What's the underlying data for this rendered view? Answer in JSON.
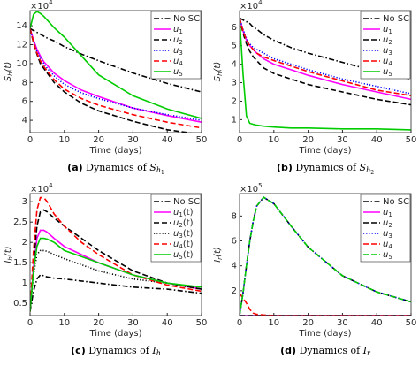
{
  "chart_data": [
    {
      "type": "line",
      "caption_label": "(a)",
      "caption_text": "Dynamics of",
      "caption_symbol": "S",
      "caption_sub": "h",
      "caption_subsub": "1",
      "ylabel_symbol": "S",
      "ylabel_sub": "h",
      "ylabel_suffix": "(t)",
      "xlabel": "Time (days)",
      "exponent_base": "×10",
      "exponent": "4",
      "x": [
        0,
        1,
        2,
        3,
        4,
        5,
        7,
        10,
        15,
        20,
        30,
        40,
        50
      ],
      "xlim": [
        0,
        50
      ],
      "xticks": [
        0,
        10,
        20,
        30,
        40,
        50
      ],
      "ylim": [
        2.7,
        15.6
      ],
      "yticks": [
        4,
        6,
        8,
        10,
        12,
        14
      ],
      "legend": "upper right",
      "series": [
        {
          "name": "No SC",
          "color": "#000000",
          "linestyle": "dashdot",
          "values": [
            13.7,
            13.5,
            13.3,
            13.1,
            12.9,
            12.7,
            12.4,
            11.8,
            11.0,
            10.3,
            9.0,
            7.9,
            7.0
          ]
        },
        {
          "name": "u1",
          "color": "#ff00ff",
          "linestyle": "solid",
          "values": [
            13.7,
            12.5,
            11.5,
            10.8,
            10.2,
            9.8,
            9.0,
            8.2,
            7.2,
            6.5,
            5.3,
            4.5,
            3.8
          ]
        },
        {
          "name": "u2",
          "color": "#000000",
          "linestyle": "dashed",
          "values": [
            13.7,
            12.2,
            11.0,
            10.0,
            9.5,
            9.0,
            8.0,
            7.0,
            5.8,
            5.0,
            3.9,
            3.0,
            2.5
          ]
        },
        {
          "name": "u3",
          "color": "#0000ff",
          "linestyle": "dotted",
          "values": [
            13.7,
            12.4,
            11.3,
            10.6,
            10.0,
            9.5,
            8.7,
            7.8,
            6.9,
            6.3,
            5.3,
            4.6,
            4.0
          ]
        },
        {
          "name": "u4",
          "color": "#ff0000",
          "linestyle": "dashed",
          "values": [
            13.7,
            12.3,
            11.1,
            10.3,
            9.7,
            9.2,
            8.3,
            7.3,
            6.3,
            5.6,
            4.6,
            3.8,
            3.2
          ]
        },
        {
          "name": "u5",
          "color": "#00cc00",
          "linestyle": "solid",
          "values": [
            13.7,
            15.2,
            15.5,
            15.3,
            15.0,
            14.6,
            13.8,
            12.8,
            10.8,
            8.8,
            6.6,
            5.2,
            4.2
          ]
        }
      ]
    },
    {
      "type": "line",
      "caption_label": "(b)",
      "caption_text": "Dynamics of",
      "caption_symbol": "S",
      "caption_sub": "h",
      "caption_subsub": "2",
      "ylabel_symbol": "S",
      "ylabel_sub": "h",
      "ylabel_suffix": "(t)",
      "xlabel": "Time (days)",
      "exponent_base": "×10",
      "exponent": "4",
      "x": [
        0,
        1,
        2,
        3,
        4,
        5,
        7,
        10,
        15,
        20,
        30,
        40,
        50
      ],
      "xlim": [
        0,
        50
      ],
      "xticks": [
        0,
        10,
        20,
        30,
        40,
        50
      ],
      "ylim": [
        0.3,
        6.9
      ],
      "yticks": [
        1,
        2,
        3,
        4,
        5,
        6
      ],
      "legend": "upper right",
      "series": [
        {
          "name": "No SC",
          "color": "#000000",
          "linestyle": "dashdot",
          "values": [
            6.5,
            6.4,
            6.3,
            6.2,
            6.0,
            5.9,
            5.6,
            5.3,
            4.9,
            4.6,
            4.1,
            3.6,
            3.2
          ]
        },
        {
          "name": "u1",
          "color": "#ff00ff",
          "linestyle": "solid",
          "values": [
            6.5,
            5.8,
            5.3,
            5.0,
            4.8,
            4.6,
            4.3,
            4.0,
            3.7,
            3.4,
            2.9,
            2.5,
            2.1
          ]
        },
        {
          "name": "u2",
          "color": "#000000",
          "linestyle": "dashed",
          "values": [
            6.5,
            5.7,
            5.1,
            4.7,
            4.4,
            4.2,
            3.8,
            3.5,
            3.2,
            2.9,
            2.5,
            2.1,
            1.8
          ]
        },
        {
          "name": "u3",
          "color": "#0000ff",
          "linestyle": "dotted",
          "values": [
            6.5,
            5.9,
            5.4,
            5.1,
            4.9,
            4.8,
            4.6,
            4.3,
            4.0,
            3.7,
            3.2,
            2.8,
            2.4
          ]
        },
        {
          "name": "u4",
          "color": "#ff0000",
          "linestyle": "dashed",
          "values": [
            6.5,
            5.8,
            5.3,
            5.0,
            4.8,
            4.6,
            4.4,
            4.2,
            3.9,
            3.6,
            3.1,
            2.6,
            2.3
          ]
        },
        {
          "name": "u5",
          "color": "#00cc00",
          "linestyle": "solid",
          "values": [
            6.5,
            3.5,
            1.2,
            0.8,
            0.75,
            0.7,
            0.65,
            0.6,
            0.55,
            0.55,
            0.5,
            0.5,
            0.45
          ]
        }
      ]
    },
    {
      "type": "line",
      "caption_label": "(c)",
      "caption_text": "Dynamics of",
      "caption_symbol": "I",
      "caption_sub": "h",
      "caption_subsub": "",
      "ylabel_symbol": "I",
      "ylabel_sub": "h",
      "ylabel_suffix": "(t)",
      "xlabel": "Time (days)",
      "exponent_base": "×10",
      "exponent": "4",
      "x": [
        0,
        1,
        2,
        3,
        4,
        5,
        7,
        10,
        15,
        20,
        30,
        40,
        50
      ],
      "xlim": [
        0,
        50
      ],
      "xticks": [
        0,
        10,
        20,
        30,
        40,
        50
      ],
      "ylim": [
        0.2,
        3.2
      ],
      "yticks": [
        0.5,
        1,
        1.5,
        2,
        2.5,
        3
      ],
      "legend": "upper right",
      "series": [
        {
          "name": "No SC",
          "color": "#000000",
          "linestyle": "dashdot",
          "values": [
            0.3,
            0.8,
            1.1,
            1.2,
            1.18,
            1.15,
            1.12,
            1.1,
            1.05,
            1.0,
            0.9,
            0.85,
            0.75
          ]
        },
        {
          "name": "u1(t)",
          "color": "#ff00ff",
          "linestyle": "solid",
          "values": [
            0.3,
            1.4,
            2.1,
            2.3,
            2.3,
            2.25,
            2.1,
            1.9,
            1.7,
            1.5,
            1.2,
            1.0,
            0.85
          ]
        },
        {
          "name": "u2(t)",
          "color": "#000000",
          "linestyle": "dashed",
          "values": [
            0.3,
            1.5,
            2.4,
            2.75,
            2.8,
            2.75,
            2.6,
            2.4,
            2.1,
            1.8,
            1.3,
            1.0,
            0.85
          ]
        },
        {
          "name": "u3(t)",
          "color": "#000000",
          "linestyle": "dotted",
          "values": [
            0.3,
            1.2,
            1.7,
            1.8,
            1.8,
            1.78,
            1.7,
            1.6,
            1.45,
            1.3,
            1.1,
            1.0,
            0.85
          ]
        },
        {
          "name": "u4(t)",
          "color": "#ff0000",
          "linestyle": "dashed",
          "values": [
            0.3,
            1.8,
            2.8,
            3.1,
            3.1,
            3.0,
            2.7,
            2.4,
            2.0,
            1.7,
            1.2,
            0.95,
            0.8
          ]
        },
        {
          "name": "u5(t)",
          "color": "#00cc00",
          "linestyle": "solid",
          "values": [
            0.3,
            1.3,
            1.9,
            2.1,
            2.1,
            2.08,
            2.0,
            1.8,
            1.65,
            1.5,
            1.2,
            1.0,
            0.9
          ]
        }
      ]
    },
    {
      "type": "line",
      "caption_label": "(d)",
      "caption_text": "Dynamics of",
      "caption_symbol": "I",
      "caption_sub": "r",
      "caption_subsub": "",
      "ylabel_symbol": "I",
      "ylabel_sub": "r",
      "ylabel_suffix": "(t)",
      "xlabel": "Time (days)",
      "exponent_base": "×10",
      "exponent": "5",
      "x": [
        0,
        1,
        2,
        3,
        4,
        5,
        7,
        10,
        15,
        20,
        30,
        40,
        50
      ],
      "xlim": [
        0,
        50
      ],
      "xticks": [
        0,
        10,
        20,
        30,
        40,
        50
      ],
      "ylim": [
        0,
        9.8
      ],
      "yticks": [
        2,
        4,
        6,
        8
      ],
      "legend": "upper right",
      "series": [
        {
          "name": "No SC",
          "color": "#000000",
          "linestyle": "dashdot",
          "values": [
            0,
            1.8,
            4.0,
            6.0,
            7.6,
            8.8,
            9.5,
            9.0,
            7.2,
            5.5,
            3.2,
            1.9,
            1.1
          ]
        },
        {
          "name": "u1",
          "color": "#ff00ff",
          "linestyle": "solid",
          "values": [
            0,
            0,
            0,
            0,
            0,
            0,
            0,
            0,
            0,
            0,
            0,
            0,
            0
          ]
        },
        {
          "name": "u2",
          "color": "#000000",
          "linestyle": "dashed",
          "values": [
            0,
            0,
            0,
            0,
            0,
            0,
            0,
            0,
            0,
            0,
            0,
            0,
            0
          ]
        },
        {
          "name": "u3",
          "color": "#0000ff",
          "linestyle": "dotted",
          "values": [
            0,
            1.8,
            4.0,
            6.0,
            7.6,
            8.8,
            9.5,
            9.0,
            7.2,
            5.5,
            3.2,
            1.9,
            1.1
          ]
        },
        {
          "name": "u4",
          "color": "#ff0000",
          "linestyle": "dashed",
          "values": [
            1.8,
            1.4,
            1.0,
            0.5,
            0.2,
            0.1,
            0.05,
            0,
            0,
            0,
            0,
            0,
            0
          ]
        },
        {
          "name": "u5",
          "color": "#00cc00",
          "linestyle": "dashed",
          "values": [
            0,
            1.8,
            4.0,
            6.0,
            7.6,
            8.8,
            9.5,
            9.0,
            7.2,
            5.5,
            3.2,
            1.9,
            1.1
          ]
        }
      ]
    }
  ]
}
